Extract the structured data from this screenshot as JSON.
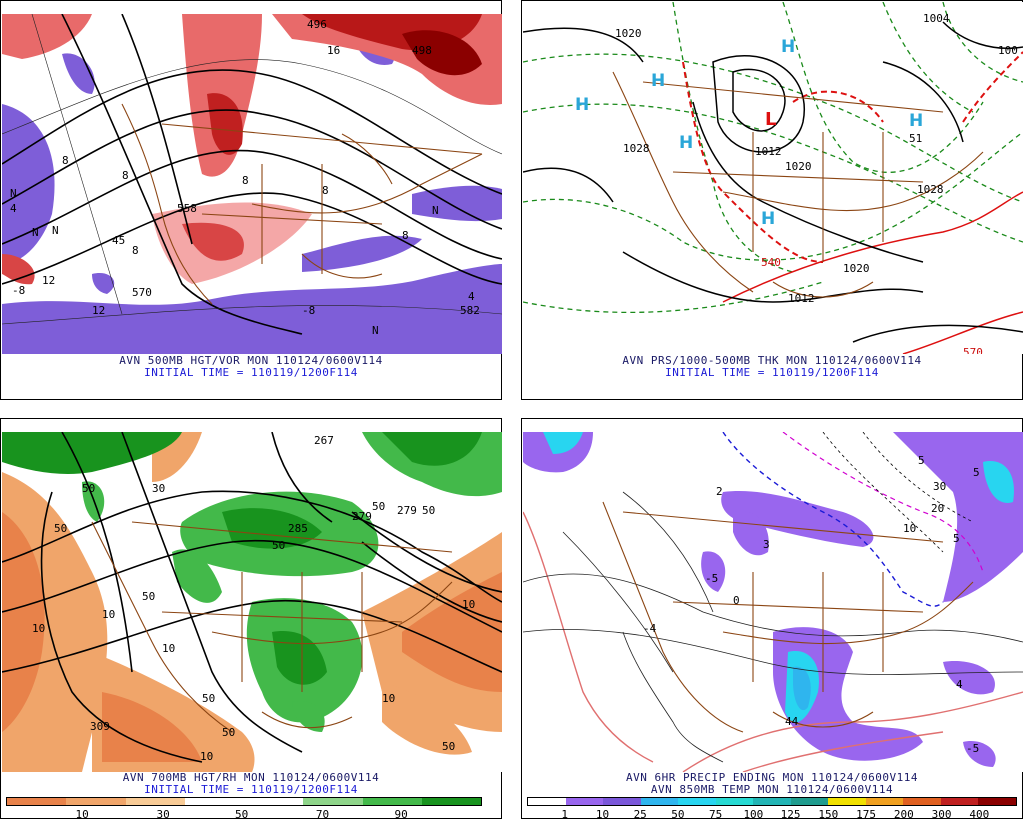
{
  "panels": {
    "tl": {
      "caption1": "AVN 500MB HGT/VOR MON 110124/0600V114",
      "caption2": "INITIAL TIME = 110119/1200F114",
      "labels": [
        "496",
        "16",
        "498",
        "558",
        "570",
        "582",
        "4",
        "8",
        "12",
        "N",
        "N",
        "N",
        "N",
        "45",
        "8",
        "8",
        "8",
        "8",
        "8",
        "-8",
        "-8",
        "8",
        "N"
      ]
    },
    "tr": {
      "caption1": "AVN PRS/1000-500MB THK MON 110124/0600V114",
      "caption2": "INITIAL TIME = 110119/1200F114",
      "labels": [
        "1020",
        "1020",
        "1028",
        "1012",
        "1020",
        "1028",
        "1020",
        "1012",
        "1004",
        "100",
        "540",
        "570",
        "51",
        "L",
        "H",
        "H",
        "H",
        "H",
        "H",
        "H"
      ]
    },
    "bl": {
      "caption1": "AVN 700MB HGT/RH MON 110124/0600V114",
      "caption2": "INITIAL TIME = 110119/1200F114",
      "labels": [
        "267",
        "50",
        "50",
        "50",
        "50",
        "50",
        "50",
        "50",
        "50",
        "285",
        "279",
        "279",
        "309",
        "10",
        "10",
        "10",
        "10",
        "10",
        "10",
        "30",
        "50"
      ],
      "colorbar": {
        "colors": [
          "#e8824a",
          "#f0a56a",
          "#f8cb96",
          "#ffffff",
          "#ffffff",
          "#8fd58a",
          "#43b94a",
          "#18931e"
        ],
        "ticks": [
          "10",
          "30",
          "50",
          "70",
          "90"
        ]
      }
    },
    "br": {
      "caption1": "AVN 6HR PRECIP ENDING MON 110124/0600V114",
      "caption2": "AVN 850MB TEMP MON 110124/0600V114",
      "labels": [
        "5",
        "5",
        "30",
        "20",
        "2",
        "3",
        "4",
        "44",
        "-5",
        "0",
        "5",
        "10",
        "-4",
        "-5"
      ],
      "colorbar": {
        "colors": [
          "#ffffff",
          "#9966ee",
          "#7a57d9",
          "#2fb5ee",
          "#28d5f0",
          "#27d9d2",
          "#22b4b4",
          "#1f9c8e",
          "#f0e000",
          "#f0a020",
          "#e06020",
          "#c02020",
          "#8b0000"
        ],
        "ticks": [
          "1",
          "10",
          "25",
          "50",
          "75",
          "100",
          "125",
          "150",
          "175",
          "200",
          "300",
          "400"
        ]
      }
    }
  }
}
